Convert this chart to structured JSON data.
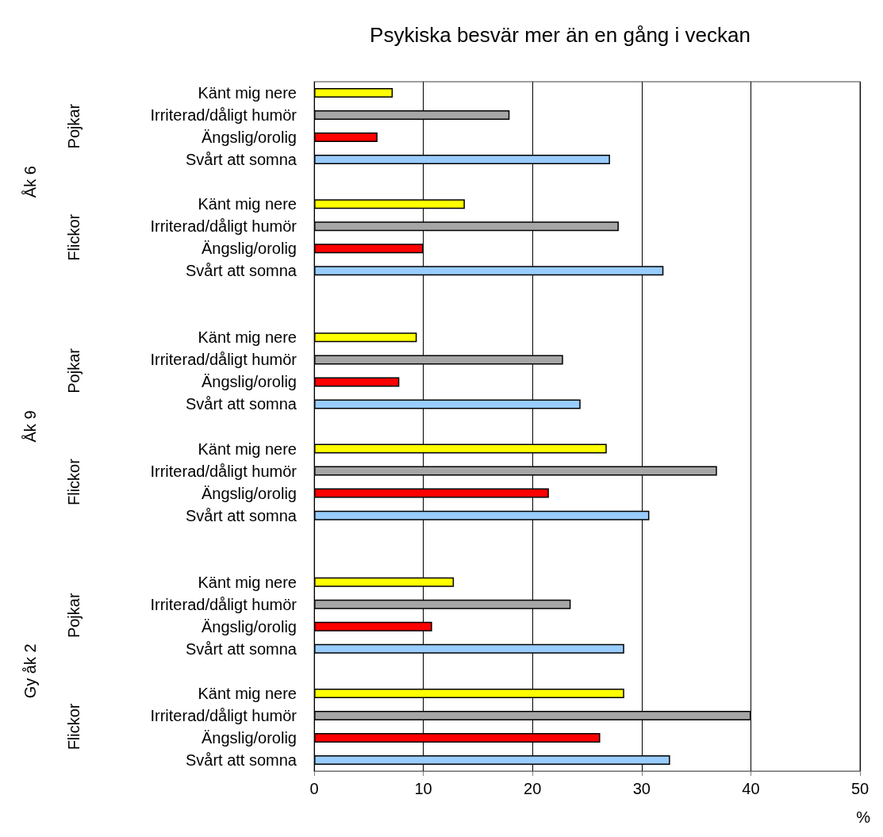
{
  "chart_data": {
    "type": "bar",
    "orientation": "horizontal",
    "title": "Psykiska besvär mer än en gång i veckan",
    "xlabel": "%",
    "categories": [
      "Känt mig nere",
      "Irriterad/dåligt humör",
      "Ängslig/orolig",
      "Svårt att somna",
      null,
      "Känt mig nere",
      "Irriterad/dåligt humör",
      "Ängslig/orolig",
      "Svårt att somna",
      null,
      null,
      "Känt mig nere",
      "Irriterad/dåligt humör",
      "Ängslig/orolig",
      "Svårt att somna",
      null,
      "Känt mig nere",
      "Irriterad/dåligt humör",
      "Ängslig/orolig",
      "Svårt att somna",
      null,
      null,
      "Känt mig nere",
      "Irriterad/dåligt humör",
      "Ängslig/orolig",
      "Svårt att somna",
      null,
      "Känt mig nere",
      "Irriterad/dåligt humör",
      "Ängslig/orolig",
      "Svårt att somna"
    ],
    "values": [
      7.2,
      17.9,
      5.8,
      27.1,
      null,
      13.8,
      27.9,
      10.0,
      32.0,
      null,
      null,
      9.4,
      22.8,
      7.8,
      24.4,
      null,
      26.8,
      36.9,
      21.5,
      30.7,
      null,
      null,
      12.8,
      23.5,
      10.8,
      28.4,
      null,
      28.4,
      40.0,
      26.2,
      32.6
    ],
    "colors": [
      "#ffff00",
      "#a6a6a6",
      "#ff0000",
      "#99ccff",
      null,
      "#ffff00",
      "#a6a6a6",
      "#ff0000",
      "#99ccff",
      null,
      null,
      "#ffff00",
      "#a6a6a6",
      "#ff0000",
      "#99ccff",
      null,
      "#ffff00",
      "#a6a6a6",
      "#ff0000",
      "#99ccff",
      null,
      null,
      "#ffff00",
      "#a6a6a6",
      "#ff0000",
      "#99ccff",
      null,
      "#ffff00",
      "#a6a6a6",
      "#ff0000",
      "#99ccff"
    ],
    "xlim": [
      0,
      50
    ],
    "xticks": [
      0,
      10,
      20,
      30,
      40,
      50
    ],
    "grid": "x",
    "annotations": [
      "Pojkar",
      "Flickor",
      "Pojkar",
      "Flickor",
      "Pojkar",
      "Flickor",
      "Åk 6",
      "Åk 9",
      "Gy åk 2"
    ]
  }
}
